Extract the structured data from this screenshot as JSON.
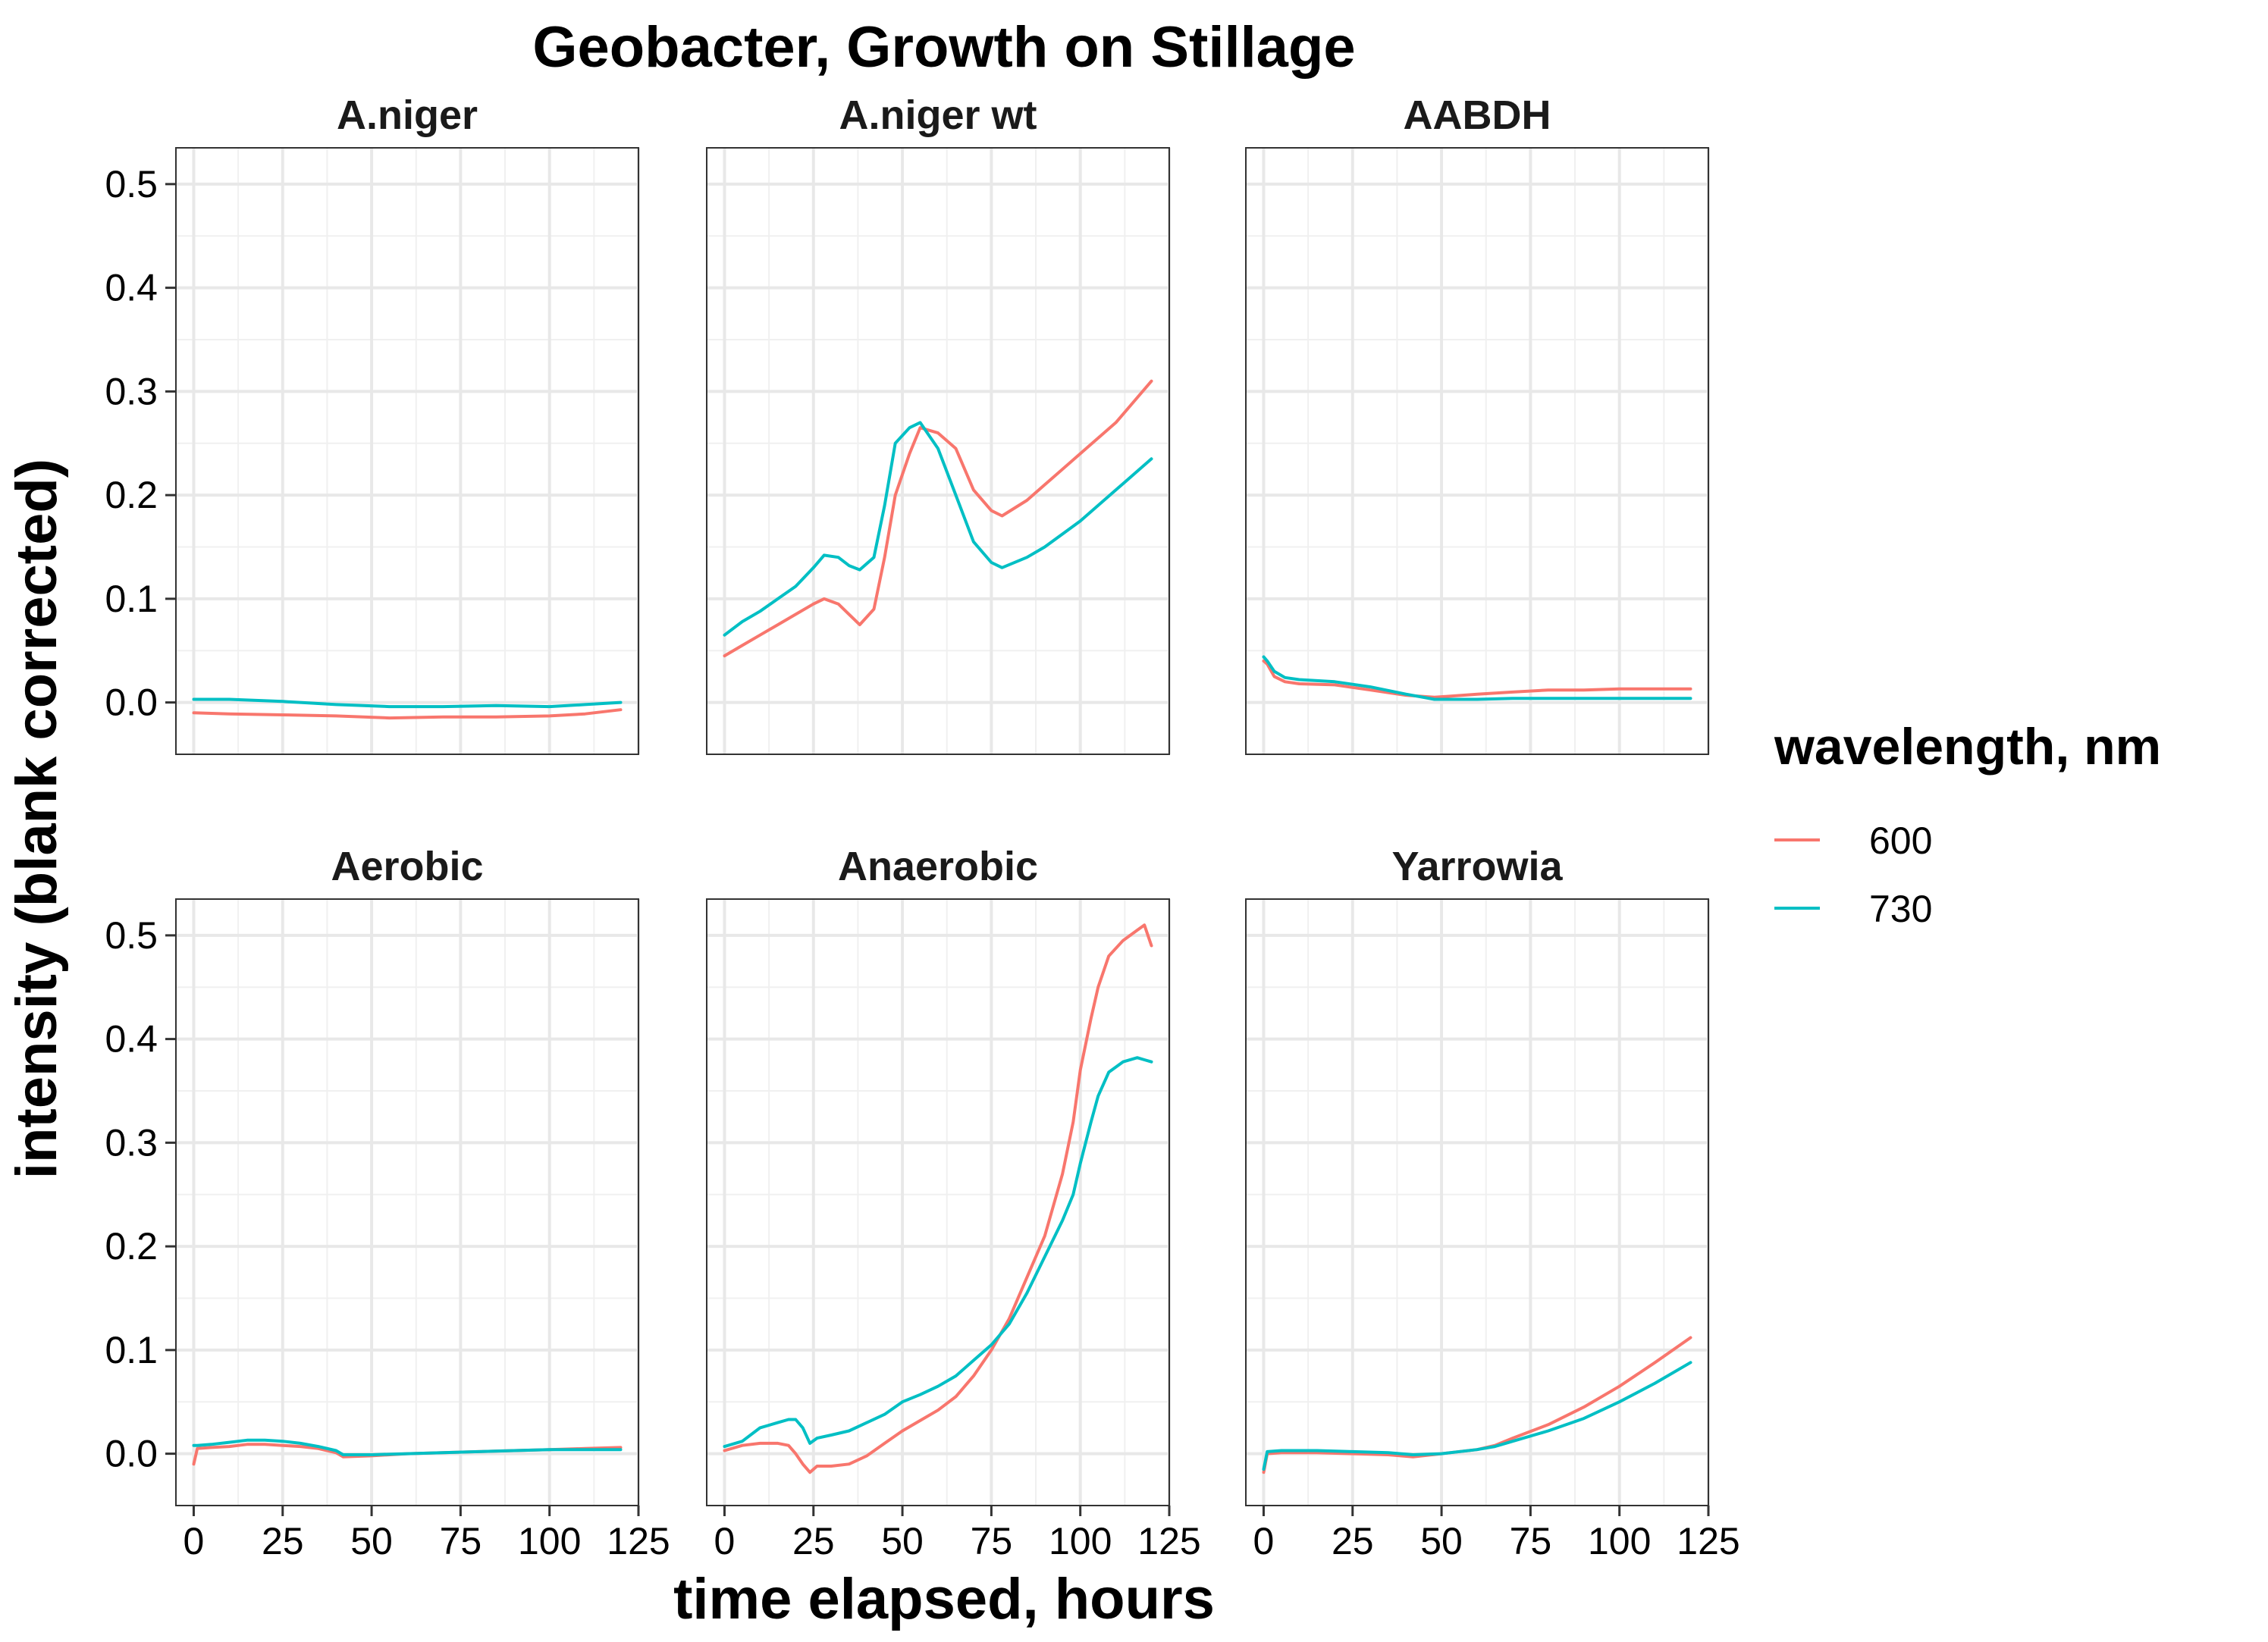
{
  "chart_data": {
    "type": "line",
    "title": "Geobacter, Growth on Stillage",
    "xlabel": "time elapsed, hours",
    "ylabel": "intensity (blank corrected)",
    "xlim": [
      -5,
      125
    ],
    "ylim": [
      -0.05,
      0.535
    ],
    "x_ticks": [
      0,
      25,
      50,
      75,
      100,
      125
    ],
    "x_tick_labels": [
      "0",
      "25",
      "50",
      "75",
      "100",
      "125"
    ],
    "y_ticks": [
      0.0,
      0.1,
      0.2,
      0.3,
      0.4,
      0.5
    ],
    "y_tick_labels": [
      "0.0",
      "0.1",
      "0.2",
      "0.3",
      "0.4",
      "0.5"
    ],
    "grid": true,
    "legend": {
      "title": "wavelength, nm",
      "position": "right",
      "entries": [
        {
          "label": "600",
          "color": "#F8766D"
        },
        {
          "label": "730",
          "color": "#00BFC4"
        }
      ]
    },
    "colors": {
      "600": "#F8766D",
      "730": "#00BFC4"
    },
    "panels": [
      {
        "label": "A.niger",
        "series": [
          {
            "name": "600",
            "x": [
              0,
              10,
              25,
              40,
              55,
              70,
              85,
              100,
              110,
              120
            ],
            "y": [
              -0.01,
              -0.011,
              -0.012,
              -0.013,
              -0.015,
              -0.014,
              -0.014,
              -0.013,
              -0.011,
              -0.007
            ]
          },
          {
            "name": "730",
            "x": [
              0,
              10,
              25,
              40,
              55,
              70,
              85,
              100,
              110,
              120
            ],
            "y": [
              0.003,
              0.003,
              0.001,
              -0.002,
              -0.004,
              -0.004,
              -0.003,
              -0.004,
              -0.002,
              0.0
            ]
          }
        ]
      },
      {
        "label": "A.niger wt",
        "series": [
          {
            "name": "600",
            "x": [
              0,
              5,
              10,
              15,
              20,
              25,
              28,
              32,
              35,
              38,
              42,
              45,
              48,
              52,
              55,
              60,
              65,
              70,
              75,
              78,
              85,
              90,
              100,
              110,
              115,
              120
            ],
            "y": [
              0.045,
              0.055,
              0.065,
              0.075,
              0.085,
              0.095,
              0.1,
              0.095,
              0.085,
              0.075,
              0.09,
              0.14,
              0.2,
              0.24,
              0.265,
              0.26,
              0.245,
              0.205,
              0.185,
              0.18,
              0.195,
              0.21,
              0.24,
              0.27,
              0.29,
              0.31
            ]
          },
          {
            "name": "730",
            "x": [
              0,
              5,
              10,
              15,
              20,
              25,
              28,
              32,
              35,
              38,
              42,
              45,
              48,
              52,
              55,
              60,
              65,
              70,
              75,
              78,
              85,
              90,
              100,
              110,
              115,
              120
            ],
            "y": [
              0.065,
              0.078,
              0.088,
              0.1,
              0.112,
              0.13,
              0.142,
              0.14,
              0.132,
              0.128,
              0.14,
              0.19,
              0.25,
              0.265,
              0.27,
              0.245,
              0.2,
              0.155,
              0.135,
              0.13,
              0.14,
              0.15,
              0.175,
              0.205,
              0.22,
              0.235
            ]
          }
        ]
      },
      {
        "label": "AABDH",
        "series": [
          {
            "name": "600",
            "x": [
              0,
              1,
              3,
              6,
              10,
              20,
              30,
              40,
              48,
              60,
              70,
              80,
              90,
              100,
              110,
              120
            ],
            "y": [
              0.04,
              0.037,
              0.025,
              0.02,
              0.018,
              0.017,
              0.012,
              0.007,
              0.005,
              0.008,
              0.01,
              0.012,
              0.012,
              0.013,
              0.013,
              0.013
            ]
          },
          {
            "name": "730",
            "x": [
              0,
              1,
              3,
              6,
              10,
              20,
              30,
              40,
              48,
              60,
              70,
              80,
              90,
              100,
              110,
              120
            ],
            "y": [
              0.044,
              0.04,
              0.03,
              0.024,
              0.022,
              0.02,
              0.015,
              0.008,
              0.003,
              0.003,
              0.004,
              0.004,
              0.004,
              0.004,
              0.004,
              0.004
            ]
          }
        ]
      },
      {
        "label": "Aerobic",
        "series": [
          {
            "name": "600",
            "x": [
              0,
              1,
              5,
              10,
              15,
              20,
              25,
              30,
              35,
              40,
              42,
              50,
              60,
              70,
              80,
              90,
              100,
              110,
              120
            ],
            "y": [
              -0.01,
              0.005,
              0.006,
              0.007,
              0.009,
              0.009,
              0.008,
              0.007,
              0.005,
              0.001,
              -0.003,
              -0.002,
              0.0,
              0.001,
              0.002,
              0.003,
              0.004,
              0.005,
              0.006
            ]
          },
          {
            "name": "730",
            "x": [
              0,
              1,
              5,
              10,
              15,
              20,
              25,
              30,
              35,
              40,
              42,
              50,
              60,
              70,
              80,
              90,
              100,
              110,
              120
            ],
            "y": [
              0.008,
              0.008,
              0.009,
              0.011,
              0.013,
              0.013,
              0.012,
              0.01,
              0.007,
              0.003,
              -0.001,
              -0.001,
              0.0,
              0.001,
              0.002,
              0.003,
              0.004,
              0.004,
              0.004
            ]
          }
        ]
      },
      {
        "label": "Anaerobic",
        "series": [
          {
            "name": "600",
            "x": [
              0,
              5,
              10,
              15,
              18,
              20,
              22,
              24,
              26,
              30,
              35,
              40,
              45,
              50,
              55,
              60,
              65,
              70,
              75,
              80,
              85,
              90,
              95,
              98,
              100,
              103,
              105,
              108,
              112,
              116,
              118,
              120
            ],
            "y": [
              0.003,
              0.008,
              0.01,
              0.01,
              0.008,
              0.0,
              -0.01,
              -0.018,
              -0.012,
              -0.012,
              -0.01,
              -0.002,
              0.01,
              0.022,
              0.032,
              0.042,
              0.055,
              0.075,
              0.1,
              0.13,
              0.17,
              0.21,
              0.27,
              0.32,
              0.37,
              0.42,
              0.45,
              0.48,
              0.495,
              0.505,
              0.51,
              0.49
            ]
          },
          {
            "name": "730",
            "x": [
              0,
              5,
              10,
              15,
              18,
              20,
              22,
              24,
              26,
              30,
              35,
              40,
              45,
              50,
              55,
              60,
              65,
              70,
              75,
              80,
              85,
              90,
              95,
              98,
              100,
              103,
              105,
              108,
              112,
              116,
              118,
              120
            ],
            "y": [
              0.007,
              0.012,
              0.025,
              0.03,
              0.033,
              0.033,
              0.025,
              0.01,
              0.015,
              0.018,
              0.022,
              0.03,
              0.038,
              0.05,
              0.057,
              0.065,
              0.075,
              0.09,
              0.105,
              0.125,
              0.155,
              0.19,
              0.225,
              0.25,
              0.28,
              0.32,
              0.345,
              0.368,
              0.378,
              0.382,
              0.38,
              0.378
            ]
          }
        ]
      },
      {
        "label": "Yarrowia",
        "series": [
          {
            "name": "600",
            "x": [
              0,
              1,
              5,
              10,
              15,
              25,
              35,
              42,
              50,
              60,
              65,
              70,
              80,
              90,
              100,
              110,
              120
            ],
            "y": [
              -0.018,
              0.0,
              0.001,
              0.001,
              0.001,
              0.0,
              -0.001,
              -0.003,
              0.0,
              0.004,
              0.008,
              0.015,
              0.028,
              0.045,
              0.065,
              0.088,
              0.112
            ]
          },
          {
            "name": "730",
            "x": [
              0,
              1,
              5,
              10,
              15,
              25,
              35,
              42,
              50,
              60,
              65,
              70,
              80,
              90,
              100,
              110,
              120
            ],
            "y": [
              -0.015,
              0.002,
              0.003,
              0.003,
              0.003,
              0.002,
              0.001,
              -0.001,
              0.0,
              0.004,
              0.007,
              0.012,
              0.022,
              0.034,
              0.05,
              0.068,
              0.088
            ]
          }
        ]
      }
    ]
  }
}
